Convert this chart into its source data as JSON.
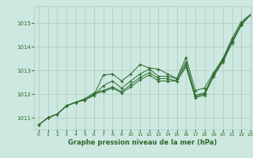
{
  "title": "Graphe pression niveau de la mer (hPa)",
  "background_color": "#cce8e0",
  "grid_color": "#b0c8c0",
  "line_color": "#2d6a2d",
  "xlim": [
    -0.5,
    23
  ],
  "ylim": [
    1010.5,
    1015.7
  ],
  "yticks": [
    1011,
    1012,
    1013,
    1014,
    1015
  ],
  "xticks": [
    0,
    1,
    2,
    3,
    4,
    5,
    6,
    7,
    8,
    9,
    10,
    11,
    12,
    13,
    14,
    15,
    16,
    17,
    18,
    19,
    20,
    21,
    22,
    23
  ],
  "series": [
    {
      "x": [
        0,
        1,
        2,
        3,
        4,
        5,
        6,
        7,
        8,
        9,
        10,
        11,
        12,
        13,
        14,
        15,
        16,
        17,
        18,
        19,
        20,
        21,
        22,
        23
      ],
      "y": [
        1010.7,
        1011.0,
        1011.15,
        1011.5,
        1011.65,
        1011.75,
        1011.95,
        1012.8,
        1012.85,
        1012.55,
        1012.85,
        1013.25,
        1013.1,
        1013.05,
        1012.85,
        1012.65,
        1013.55,
        1012.15,
        1012.25,
        1012.9,
        1013.5,
        1014.35,
        1015.05,
        1015.35
      ]
    },
    {
      "x": [
        0,
        1,
        2,
        3,
        4,
        5,
        6,
        7,
        8,
        9,
        10,
        11,
        12,
        13,
        14,
        15,
        16,
        17,
        18,
        19,
        20,
        21,
        22,
        23
      ],
      "y": [
        1010.7,
        1011.0,
        1011.15,
        1011.5,
        1011.65,
        1011.75,
        1011.95,
        1012.35,
        1012.55,
        1012.25,
        1012.55,
        1012.85,
        1013.05,
        1012.75,
        1012.75,
        1012.65,
        1013.35,
        1011.95,
        1012.05,
        1012.85,
        1013.45,
        1014.25,
        1014.95,
        1015.35
      ]
    },
    {
      "x": [
        0,
        1,
        2,
        3,
        4,
        5,
        6,
        7,
        8,
        9,
        10,
        11,
        12,
        13,
        14,
        15,
        16,
        17,
        18,
        19,
        20,
        21,
        22,
        23
      ],
      "y": [
        1010.7,
        1011.0,
        1011.15,
        1011.5,
        1011.65,
        1011.75,
        1012.0,
        1012.1,
        1012.25,
        1012.05,
        1012.3,
        1012.6,
        1012.8,
        1012.55,
        1012.55,
        1012.55,
        1013.15,
        1011.85,
        1011.95,
        1012.75,
        1013.35,
        1014.15,
        1014.9,
        1015.35
      ]
    },
    {
      "x": [
        0,
        1,
        2,
        3,
        4,
        5,
        6,
        7,
        8,
        9,
        10,
        11,
        12,
        13,
        14,
        15,
        16,
        17,
        18,
        19,
        20,
        21,
        22,
        23
      ],
      "y": [
        1010.7,
        1011.0,
        1011.15,
        1011.5,
        1011.65,
        1011.8,
        1012.05,
        1012.15,
        1012.3,
        1012.1,
        1012.4,
        1012.7,
        1012.9,
        1012.65,
        1012.65,
        1012.55,
        1013.25,
        1011.9,
        1012.0,
        1012.8,
        1013.4,
        1014.2,
        1014.95,
        1015.35
      ]
    }
  ]
}
